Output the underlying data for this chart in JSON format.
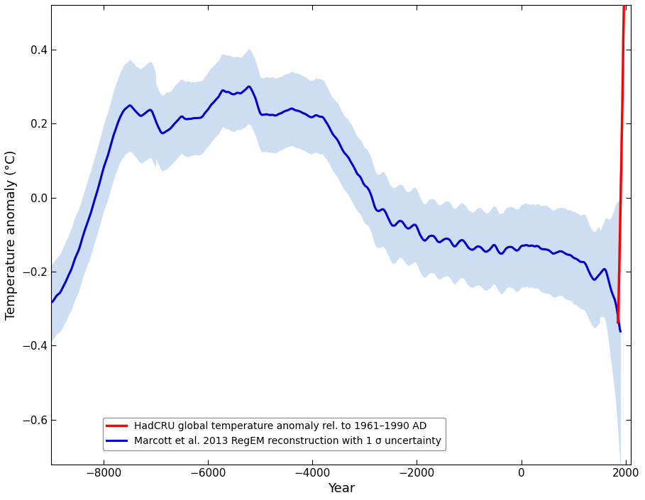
{
  "xlabel": "Year",
  "ylabel": "Temperature anomaly (°C)",
  "xlim": [
    -9000,
    2100
  ],
  "ylim": [
    -0.72,
    0.52
  ],
  "xticks": [
    -8000,
    -6000,
    -4000,
    -2000,
    0,
    2000
  ],
  "yticks": [
    -0.6,
    -0.4,
    -0.2,
    0.0,
    0.2,
    0.4
  ],
  "marcott_color": "#0000CC",
  "marcott_shade_color": "#c5d8f0",
  "marcott_shade_alpha": 0.85,
  "hadcru_color": "#FF0000",
  "hadcru_linewidth": 2.5,
  "marcott_linewidth": 2.2,
  "legend_loc": "lower left",
  "legend_labels": [
    "HadCRU global temperature anomaly rel. to 1961–1990 AD",
    "Marcott et al. 2013 RegEM reconstruction with 1 σ uncertainty"
  ],
  "background_color": "#ffffff",
  "tick_fontsize": 11,
  "label_fontsize": 13
}
